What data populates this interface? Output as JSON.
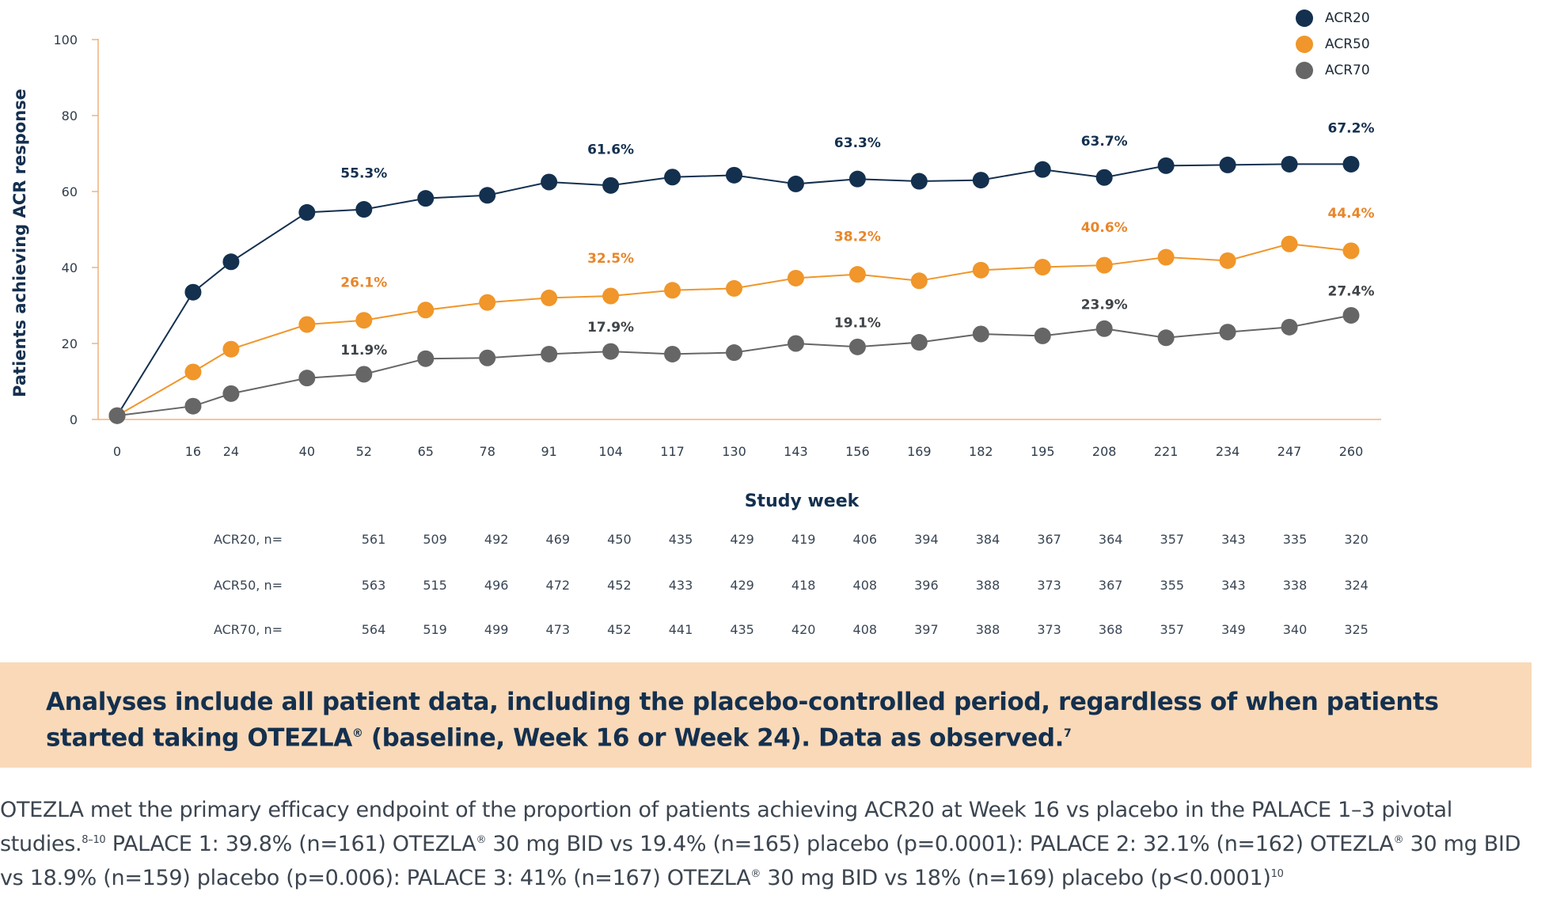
{
  "chart_data": {
    "type": "line",
    "title": "",
    "xlabel": "Study week",
    "ylabel": "Patients achieving ACR response",
    "ylim": [
      0,
      100
    ],
    "y_ticks": [
      0,
      20,
      40,
      60,
      80,
      100
    ],
    "x_ticks": [
      0,
      16,
      24,
      40,
      52,
      65,
      78,
      91,
      104,
      117,
      130,
      143,
      156,
      169,
      182,
      195,
      208,
      221,
      234,
      247,
      260
    ],
    "legend_position": "top-right",
    "series": [
      {
        "name": "ACR20",
        "color": "#14304f",
        "label_color": "#14304f",
        "x": [
          0,
          16,
          24,
          40,
          52,
          65,
          78,
          91,
          104,
          117,
          130,
          143,
          156,
          169,
          182,
          195,
          208,
          221,
          234,
          247,
          260
        ],
        "values": [
          1,
          33.5,
          41.5,
          54.5,
          55.3,
          58.2,
          59,
          62.5,
          61.6,
          63.8,
          64.3,
          62,
          63.3,
          62.7,
          63,
          65.8,
          63.7,
          66.8,
          67,
          67.2,
          67.2
        ],
        "labels": [
          {
            "x": 52,
            "text": "55.3%"
          },
          {
            "x": 104,
            "text": "61.6%"
          },
          {
            "x": 156,
            "text": "63.3%"
          },
          {
            "x": 208,
            "text": "63.7%"
          },
          {
            "x": 260,
            "text": "67.2%"
          }
        ]
      },
      {
        "name": "ACR50",
        "color": "#f0962a",
        "label_color": "#e8862a",
        "x": [
          0,
          16,
          24,
          40,
          52,
          65,
          78,
          91,
          104,
          117,
          130,
          143,
          156,
          169,
          182,
          195,
          208,
          221,
          234,
          247,
          260
        ],
        "values": [
          1,
          12.5,
          18.5,
          25,
          26.1,
          28.8,
          30.8,
          32,
          32.5,
          34,
          34.5,
          37.2,
          38.2,
          36.5,
          39.3,
          40.1,
          40.6,
          42.7,
          41.8,
          46.2,
          44.4
        ],
        "labels": [
          {
            "x": 52,
            "text": "26.1%"
          },
          {
            "x": 104,
            "text": "32.5%"
          },
          {
            "x": 156,
            "text": "38.2%"
          },
          {
            "x": 208,
            "text": "40.6%"
          },
          {
            "x": 260,
            "text": "44.4%"
          }
        ]
      },
      {
        "name": "ACR70",
        "color": "#666666",
        "label_color": "#3f4448",
        "x": [
          0,
          16,
          24,
          40,
          52,
          65,
          78,
          91,
          104,
          117,
          130,
          143,
          156,
          169,
          182,
          195,
          208,
          221,
          234,
          247,
          260
        ],
        "values": [
          1,
          3.5,
          6.8,
          10.9,
          11.9,
          16,
          16.2,
          17.2,
          17.9,
          17.2,
          17.6,
          20,
          19.1,
          20.3,
          22.5,
          22,
          23.9,
          21.5,
          23,
          24.3,
          27.4
        ],
        "labels": [
          {
            "x": 52,
            "text": "11.9%"
          },
          {
            "x": 104,
            "text": "17.9%"
          },
          {
            "x": 156,
            "text": "19.1%"
          },
          {
            "x": 208,
            "text": "23.9%"
          },
          {
            "x": 260,
            "text": "27.4%"
          }
        ]
      }
    ],
    "n_table": {
      "rows": [
        {
          "label": "ACR20, n=",
          "values": [
            "561",
            "509",
            "492",
            "469",
            "450",
            "435",
            "429",
            "419",
            "406",
            "394",
            "384",
            "367",
            "364",
            "357",
            "343",
            "335",
            "320"
          ]
        },
        {
          "label": "ACR50, n=",
          "values": [
            "563",
            "515",
            "496",
            "472",
            "452",
            "433",
            "429",
            "418",
            "408",
            "396",
            "388",
            "373",
            "367",
            "355",
            "343",
            "338",
            "324"
          ]
        },
        {
          "label": "ACR70, n=",
          "values": [
            "564",
            "519",
            "499",
            "473",
            "452",
            "441",
            "435",
            "420",
            "408",
            "397",
            "388",
            "373",
            "368",
            "357",
            "349",
            "340",
            "325"
          ]
        }
      ]
    }
  },
  "banner": {
    "line1": "Analyses include all patient data, including the placebo-controlled period, regardless of when patients",
    "line2_a": "started taking OTEZLA",
    "line2_reg": "®",
    "line2_b": " (baseline, Week 16 or Week 24). Data as observed.",
    "line2_ref": "7"
  },
  "footnote": {
    "p1": "OTEZLA met the primary efficacy endpoint of the proportion of patients achieving ACR20 at Week 16 vs placebo in the PALACE 1–3 pivotal studies.",
    "ref1": "8–10",
    "p2": " PALACE 1: 39.8% (n=161) OTEZLA",
    "reg1": "®",
    "p3": " 30 mg BID vs 19.4% (n=165) placebo (p=0.0001): PALACE 2: 32.1% (n=162) OTEZLA",
    "reg2": "®",
    "p4": " 30 mg BID vs 18.9% (n=159) placebo (p=0.006): PALACE 3: 41% (n=167) OTEZLA",
    "reg3": "®",
    "p5": " 30 mg BID vs 18% (n=169) placebo (p<0.0001)",
    "ref2": "10"
  }
}
